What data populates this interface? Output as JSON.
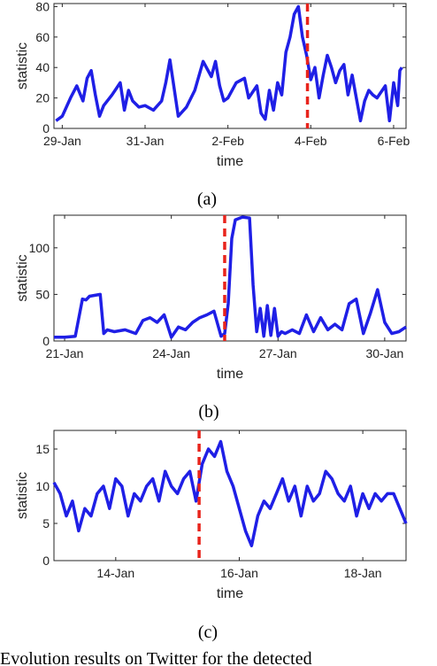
{
  "caption_fragment": "Evolution results on Twitter for the detected",
  "chart_data": [
    {
      "type": "line",
      "caption": "(a)",
      "xlabel": "time",
      "ylabel": "statistic",
      "x_ticks": [
        "29-Jan",
        "31-Jan",
        "2-Feb",
        "4-Feb",
        "6-Feb"
      ],
      "x_tick_days": [
        0,
        2,
        4,
        6,
        8
      ],
      "xlim_days": [
        -0.2,
        8.3
      ],
      "ylim": [
        0,
        82
      ],
      "y_ticks": [
        0,
        20,
        40,
        60,
        80
      ],
      "change_point_day": 5.92,
      "line_color": "#1f1fe6",
      "change_color": "#e8241c",
      "series": [
        {
          "x": [
            -0.15,
            0.0,
            0.2,
            0.35,
            0.5,
            0.6,
            0.7,
            0.8,
            0.9,
            1.0,
            1.2,
            1.4,
            1.5,
            1.6,
            1.7,
            1.85,
            2.0,
            2.2,
            2.4,
            2.5,
            2.6,
            2.8,
            3.0,
            3.2,
            3.4,
            3.6,
            3.7,
            3.8,
            3.9,
            4.0,
            4.2,
            4.4,
            4.5,
            4.7,
            4.8,
            4.9,
            5.0,
            5.1,
            5.2,
            5.3,
            5.4,
            5.5,
            5.6,
            5.7,
            5.8,
            5.9,
            6.0,
            6.1,
            6.2,
            6.3,
            6.4,
            6.5,
            6.6,
            6.7,
            6.8,
            6.9,
            7.0,
            7.2,
            7.3,
            7.4,
            7.5,
            7.6,
            7.8,
            7.9,
            8.0,
            8.1,
            8.15,
            8.2
          ],
          "y": [
            5,
            8,
            20,
            28,
            18,
            33,
            38,
            22,
            8,
            15,
            22,
            30,
            12,
            25,
            18,
            14,
            15,
            12,
            18,
            30,
            45,
            8,
            14,
            25,
            44,
            34,
            44,
            28,
            18,
            20,
            30,
            33,
            20,
            28,
            10,
            6,
            25,
            12,
            30,
            22,
            50,
            60,
            75,
            80,
            60,
            48,
            32,
            40,
            20,
            35,
            48,
            40,
            30,
            38,
            42,
            22,
            35,
            5,
            18,
            25,
            22,
            20,
            28,
            5,
            30,
            15,
            38,
            40
          ]
        }
      ]
    },
    {
      "type": "line",
      "caption": "(b)",
      "xlabel": "time",
      "ylabel": "statistic",
      "x_ticks": [
        "21-Jan",
        "24-Jan",
        "27-Jan",
        "30-Jan"
      ],
      "x_tick_days": [
        0,
        3,
        6,
        9
      ],
      "xlim_days": [
        -0.3,
        9.6
      ],
      "ylim": [
        0,
        135
      ],
      "y_ticks": [
        0,
        50,
        100
      ],
      "change_point_day": 4.5,
      "line_color": "#1f1fe6",
      "change_color": "#e8241c",
      "series": [
        {
          "x": [
            -0.3,
            0.0,
            0.3,
            0.5,
            0.6,
            0.7,
            1.0,
            1.1,
            1.2,
            1.4,
            1.7,
            2.0,
            2.2,
            2.4,
            2.6,
            2.8,
            3.0,
            3.2,
            3.4,
            3.6,
            3.8,
            4.0,
            4.2,
            4.4,
            4.5,
            4.6,
            4.7,
            4.8,
            5.0,
            5.2,
            5.3,
            5.4,
            5.5,
            5.6,
            5.7,
            5.8,
            5.9,
            6.0,
            6.1,
            6.2,
            6.4,
            6.6,
            6.8,
            7.0,
            7.2,
            7.4,
            7.6,
            7.8,
            8.0,
            8.2,
            8.4,
            8.6,
            8.8,
            9.0,
            9.2,
            9.4,
            9.6
          ],
          "y": [
            4,
            4,
            5,
            45,
            44,
            48,
            50,
            8,
            12,
            10,
            12,
            8,
            22,
            25,
            20,
            28,
            4,
            15,
            12,
            20,
            25,
            28,
            32,
            5,
            8,
            40,
            110,
            130,
            133,
            132,
            60,
            10,
            35,
            5,
            38,
            6,
            35,
            5,
            10,
            8,
            12,
            8,
            28,
            10,
            25,
            12,
            18,
            12,
            40,
            45,
            8,
            30,
            55,
            20,
            8,
            10,
            15
          ]
        }
      ]
    },
    {
      "type": "line",
      "caption": "(c)",
      "xlabel": "time",
      "ylabel": "statistic",
      "x_ticks": [
        "14-Jan",
        "16-Jan",
        "18-Jan"
      ],
      "x_tick_days": [
        1,
        3,
        5
      ],
      "xlim_days": [
        0,
        5.7
      ],
      "ylim": [
        0,
        17.5
      ],
      "y_ticks": [
        0,
        5,
        10,
        15
      ],
      "change_point_day": 2.35,
      "line_color": "#1f1fe6",
      "change_color": "#e8241c",
      "series": [
        {
          "x": [
            0.0,
            0.1,
            0.2,
            0.3,
            0.4,
            0.5,
            0.6,
            0.7,
            0.8,
            0.9,
            1.0,
            1.1,
            1.2,
            1.3,
            1.4,
            1.5,
            1.6,
            1.7,
            1.8,
            1.9,
            2.0,
            2.1,
            2.2,
            2.3,
            2.4,
            2.5,
            2.6,
            2.7,
            2.8,
            2.9,
            3.0,
            3.1,
            3.2,
            3.3,
            3.4,
            3.5,
            3.6,
            3.7,
            3.8,
            3.9,
            4.0,
            4.1,
            4.2,
            4.3,
            4.4,
            4.5,
            4.6,
            4.7,
            4.8,
            4.9,
            5.0,
            5.1,
            5.2,
            5.3,
            5.4,
            5.5,
            5.6,
            5.7
          ],
          "y": [
            10.5,
            9,
            6,
            8,
            4,
            7,
            6,
            9,
            10,
            7,
            11,
            10,
            6,
            9,
            8,
            10,
            11,
            8,
            12,
            10,
            9,
            11,
            12,
            8,
            13,
            15,
            14,
            16,
            12,
            10,
            7,
            4,
            2,
            6,
            8,
            7,
            9,
            11,
            8,
            10,
            6,
            10,
            8,
            9,
            12,
            11,
            9,
            8,
            10,
            6,
            9,
            7,
            9,
            8,
            9,
            9,
            7,
            5
          ]
        }
      ]
    }
  ]
}
